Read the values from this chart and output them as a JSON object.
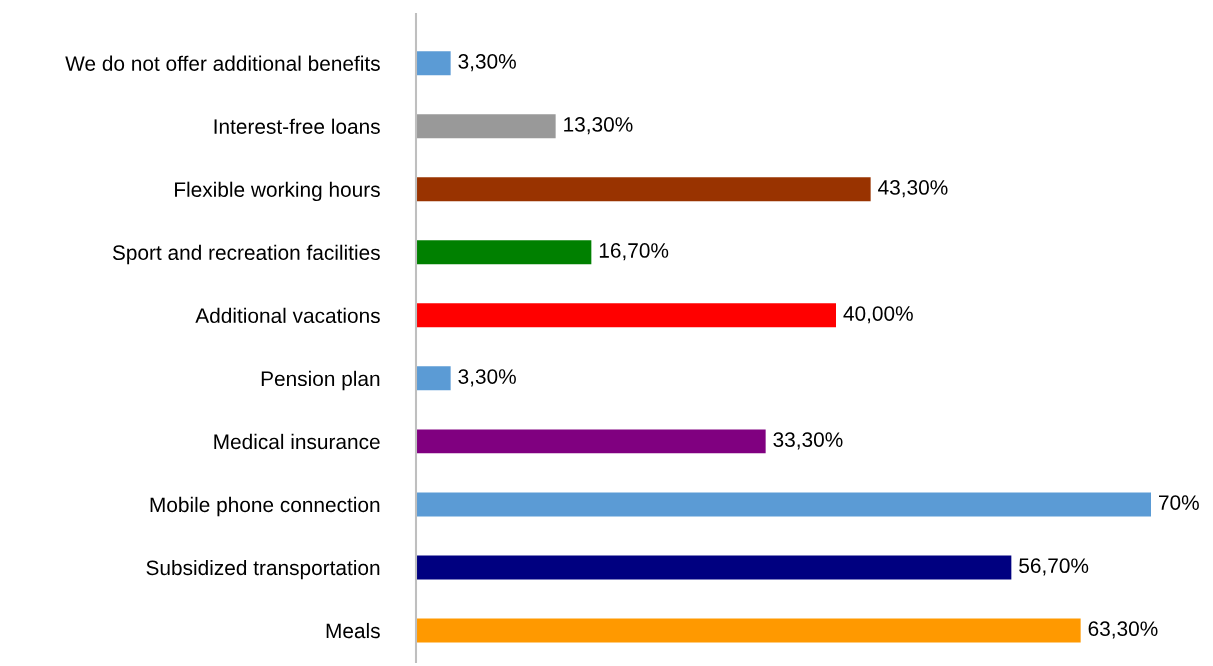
{
  "chart_data": {
    "type": "bar",
    "orientation": "horizontal",
    "categories": [
      "We do not offer additional benefits",
      "Interest-free loans",
      "Flexible working hours",
      "Sport and recreation facilities",
      "Additional vacations",
      "Pension plan",
      "Medical insurance",
      "Mobile phone connection",
      "Subsidized transportation",
      "Meals"
    ],
    "values": [
      3.3,
      13.3,
      43.3,
      16.7,
      40.0,
      3.3,
      33.3,
      70,
      56.7,
      63.3
    ],
    "value_labels": [
      "3,30%",
      "13,30%",
      "43,30%",
      "16,70%",
      "40,00%",
      "3,30%",
      "33,30%",
      "70%",
      "56,70%",
      "63,30%"
    ],
    "colors": [
      "#5b9bd5",
      "#999999",
      "#993300",
      "#008000",
      "#ff0000",
      "#5b9bd5",
      "#800080",
      "#5b9bd5",
      "#000080",
      "#ff9900"
    ],
    "xlim": [
      0,
      70
    ],
    "tick_labels": "y",
    "grid": false,
    "legend": false
  }
}
